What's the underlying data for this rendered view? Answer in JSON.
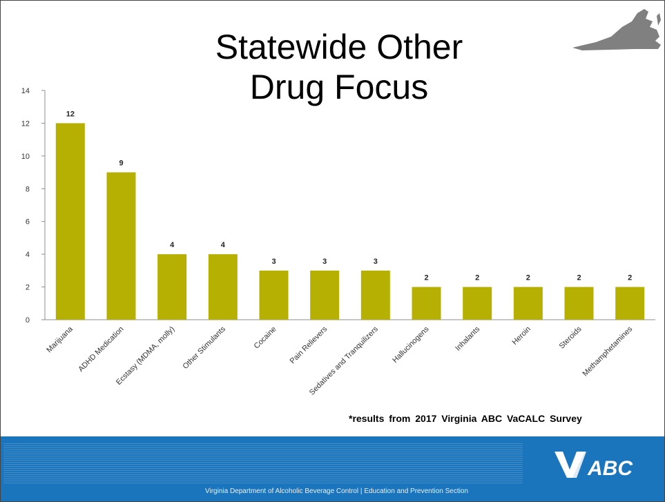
{
  "slide": {
    "title_line1": "Statewide Other",
    "title_line2": "Drug Focus",
    "source_note": "*results from 2017 Virginia ABC VaCALC Survey",
    "footer_text": "Virginia Department of Alcoholic Beverage Control | Education and Prevention Section",
    "logo_text": "ABC",
    "state_icon": "virginia-map-icon",
    "colors": {
      "bar": "#b5b002",
      "footer": "#1b75bc"
    }
  },
  "chart_data": {
    "type": "bar",
    "title": "",
    "xlabel": "",
    "ylabel": "",
    "ylim": [
      0,
      14
    ],
    "yticks": [
      0,
      2,
      4,
      6,
      8,
      10,
      12,
      14
    ],
    "grid": false,
    "categories": [
      "Marijuana",
      "ADHD Medication",
      "Ecstasy (MDMA, molly)",
      "Other Stimulants",
      "Cocaine",
      "Pain Relievers",
      "Sedatives and Tranquilizers",
      "Hallucinogens",
      "Inhalants",
      "Heroin",
      "Steroids",
      "Methamphetamines"
    ],
    "values": [
      12,
      9,
      4,
      4,
      3,
      3,
      3,
      2,
      2,
      2,
      2,
      2
    ]
  }
}
